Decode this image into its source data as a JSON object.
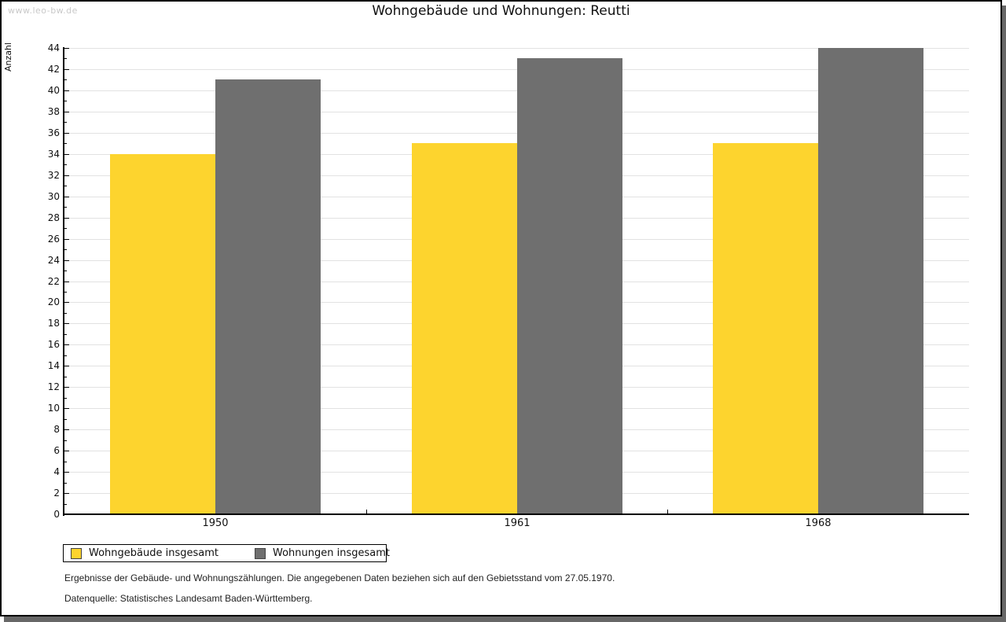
{
  "watermark": "www.leo-bw.de",
  "title": "Wohngebäude und Wohnungen: Reutti",
  "chart_data": {
    "type": "bar",
    "title": "Wohngebäude und Wohnungen: Reutti",
    "xlabel": "",
    "ylabel": "Anzahl",
    "categories": [
      "1950",
      "1961",
      "1968"
    ],
    "series": [
      {
        "name": "Wohngebäude insgesamt",
        "color": "#fdd42e",
        "values": [
          34,
          35,
          35
        ]
      },
      {
        "name": "Wohnungen insgesamt",
        "color": "#6f6f6f",
        "values": [
          41,
          43,
          44
        ]
      }
    ],
    "ylim": [
      0,
      44
    ],
    "ytick_step": 2,
    "yminor_step": 1,
    "grid": true,
    "legend_position": "bottom-left"
  },
  "legend": {
    "items": [
      {
        "label": "Wohngebäude insgesamt",
        "color": "#fdd42e"
      },
      {
        "label": "Wohnungen insgesamt",
        "color": "#6f6f6f"
      }
    ]
  },
  "footnotes": {
    "line1": "Ergebnisse der Gebäude- und Wohnungszählungen. Die angegebenen Daten beziehen sich auf den Gebietsstand vom 27.05.1970.",
    "line2": "Datenquelle: Statistisches Landesamt Baden-Württemberg."
  }
}
